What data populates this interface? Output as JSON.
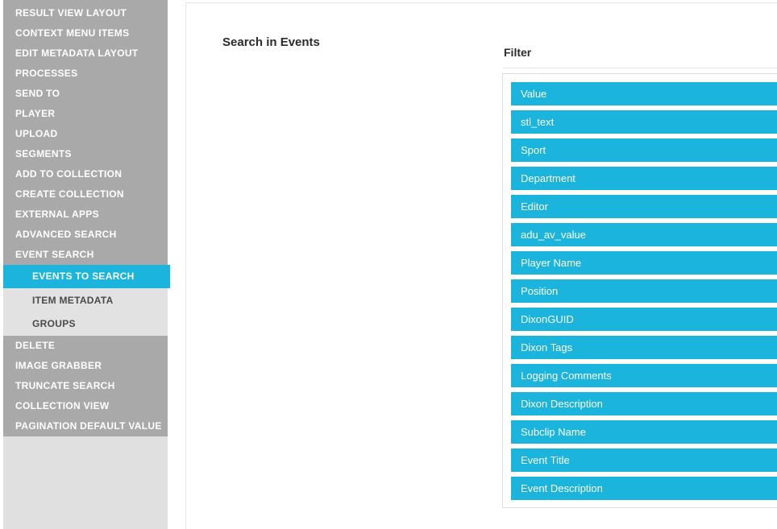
{
  "sidebar": {
    "items_top": [
      "RESULT VIEW LAYOUT",
      "CONTEXT MENU ITEMS",
      "EDIT METADATA LAYOUT",
      "PROCESSES",
      "SEND TO",
      "PLAYER",
      "UPLOAD",
      "SEGMENTS",
      "ADD TO COLLECTION",
      "CREATE COLLECTION",
      "EXTERNAL APPS",
      "ADVANCED SEARCH",
      "EVENT SEARCH"
    ],
    "selected_item": "EVENTS TO SEARCH",
    "sub_items": [
      "ITEM METADATA",
      "GROUPS"
    ],
    "items_bottom": [
      "DELETE",
      "IMAGE GRABBER",
      "TRUNCATE SEARCH",
      "COLLECTION VIEW",
      "PAGINATION DEFAULT VALUE"
    ]
  },
  "main": {
    "title": "Search in Events",
    "filter": {
      "label": "Filter",
      "options": [
        "Value",
        "stl_text",
        "Sport",
        "Department",
        "Editor",
        "adu_av_value",
        "Player Name",
        "Position",
        "DixonGUID",
        "Dixon Tags",
        "Logging Comments",
        "Dixon Description",
        "Subclip Name",
        "Event Title",
        "Event Description"
      ]
    }
  },
  "colors": {
    "accent_cyan": "#1ab4dc",
    "sidebar_gray": "#a9a9a9",
    "sidebar_light_gray": "#e2e2e2",
    "sidebar_footer_gray": "#e0e0e0"
  }
}
